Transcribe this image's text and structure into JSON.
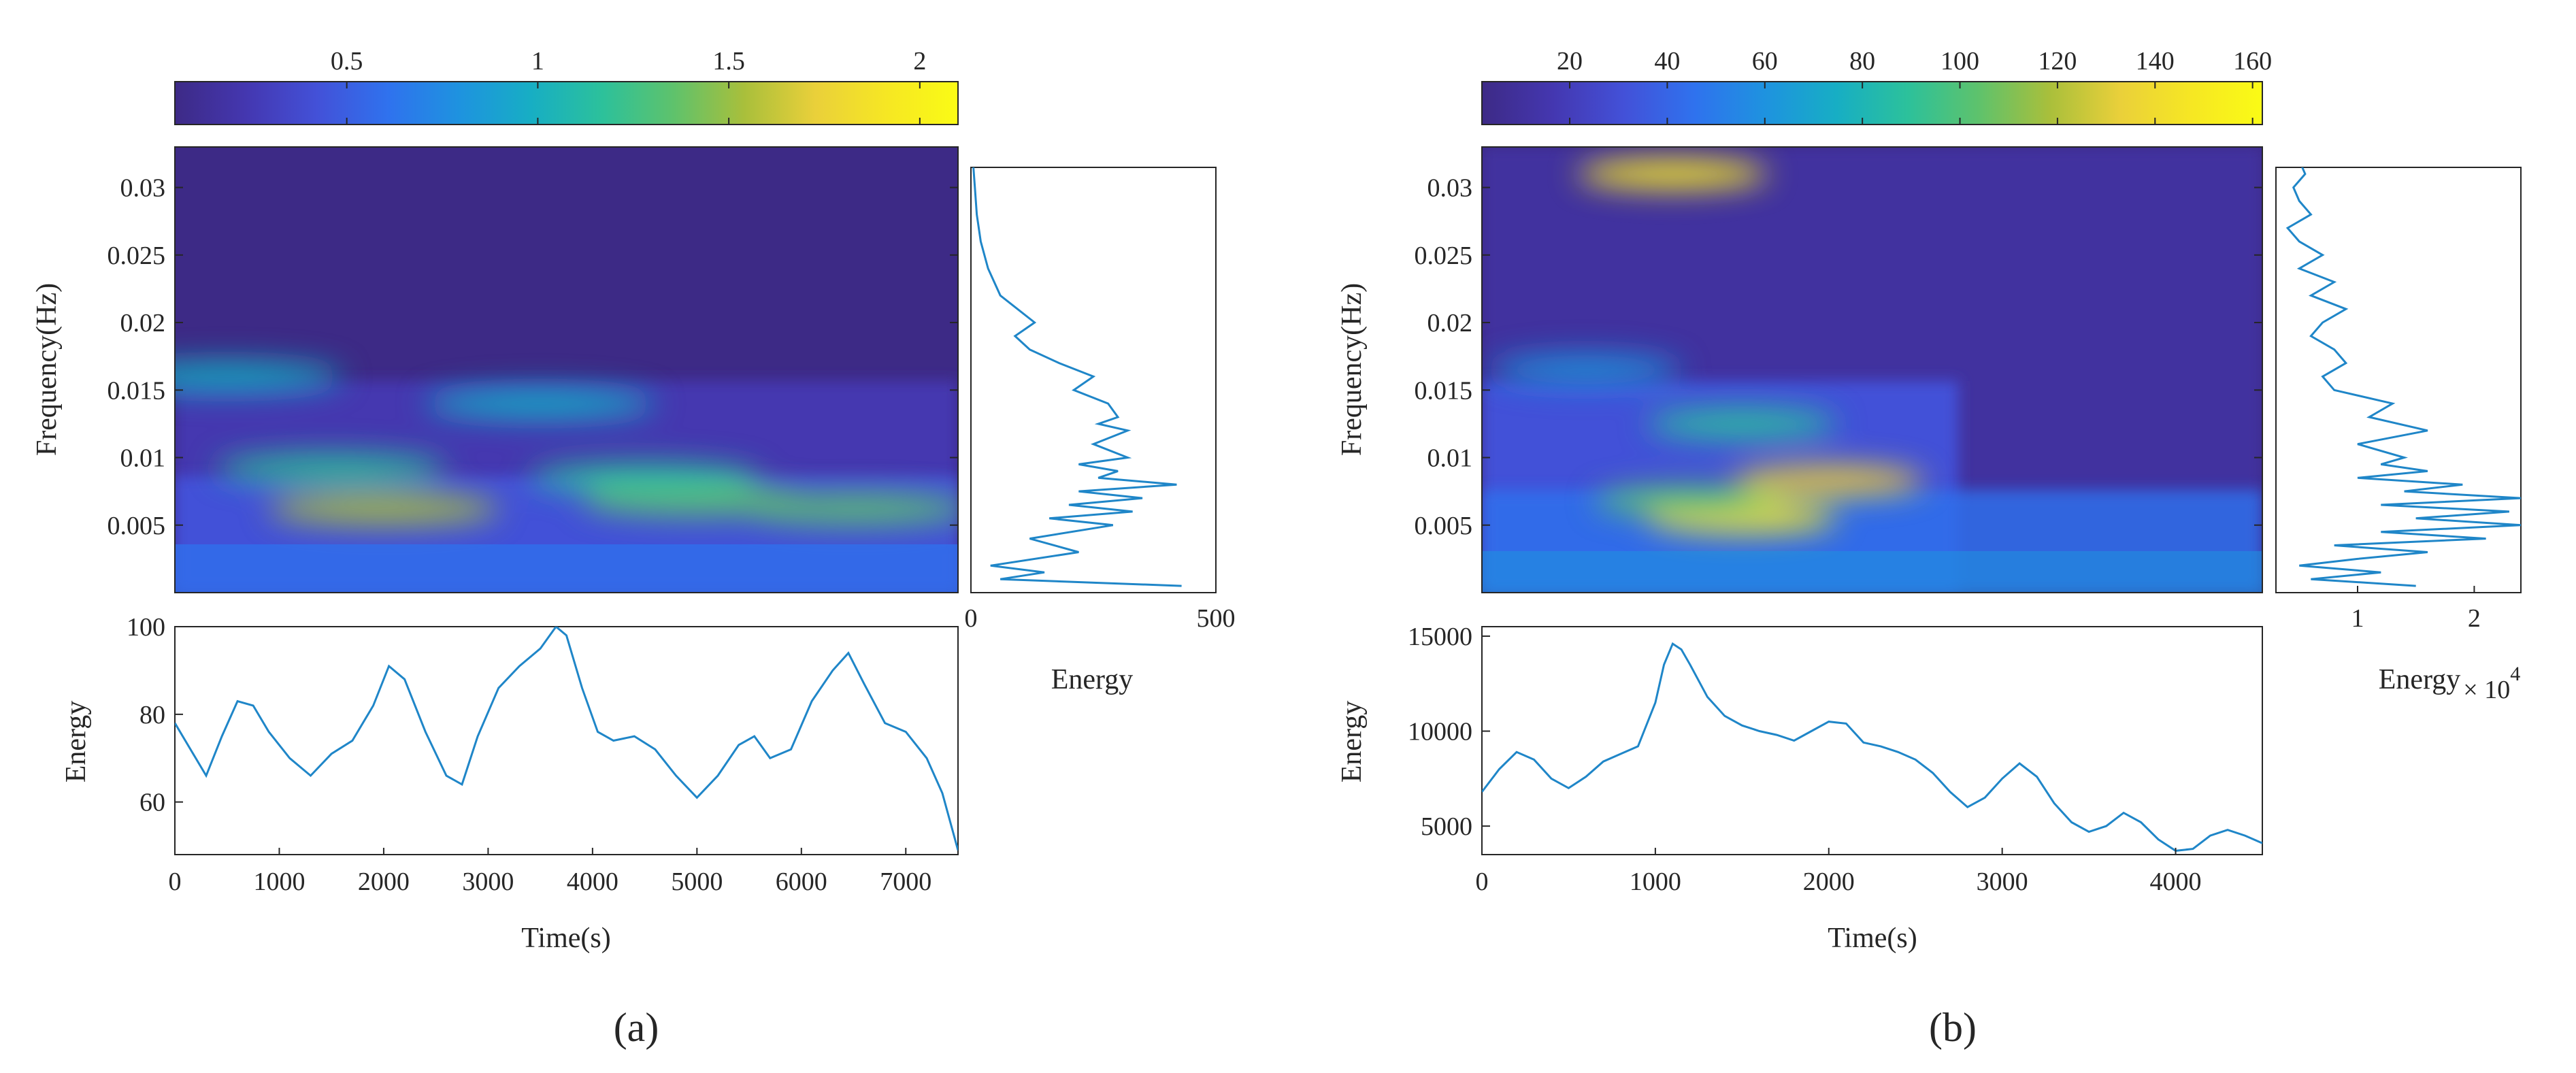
{
  "colors": {
    "line": "#1f86c8",
    "axis": "#262626",
    "colormap": [
      "#3d2a86",
      "#4437b0",
      "#4351d8",
      "#2f72ee",
      "#1e93df",
      "#17aec4",
      "#2cc19b",
      "#5ec26c",
      "#a9bf3b",
      "#ead03a",
      "#f6e723",
      "#fafb15"
    ]
  },
  "chart_data": [
    {
      "panel_label": "(a)",
      "colorbar": {
        "ticks": [
          0.5,
          1,
          1.5,
          2
        ],
        "tick_labels": [
          "0.5",
          "1",
          "1.5",
          "2"
        ],
        "range": [
          0.05,
          2.1
        ]
      },
      "spectrogram": {
        "type": "heatmap",
        "xlim": [
          0,
          7500
        ],
        "ylim": [
          0,
          0.033
        ],
        "ylabel": "Frequency(Hz)",
        "yticks": [
          0.005,
          0.01,
          0.015,
          0.02,
          0.025,
          0.03
        ],
        "ytick_labels": [
          "0.005",
          "0.01",
          "0.015",
          "0.02",
          "0.025",
          "0.03"
        ],
        "features": [
          {
            "t": 2000,
            "f": 0.0062,
            "value": 1.6
          },
          {
            "t": 5000,
            "f": 0.0068,
            "value": 1.3
          },
          {
            "t": 6500,
            "f": 0.0062,
            "value": 1.4
          },
          {
            "t": 1500,
            "f": 0.0092,
            "value": 1.2
          },
          {
            "t": 4500,
            "f": 0.0085,
            "value": 1.1
          },
          {
            "t": 3500,
            "f": 0.014,
            "value": 1.0
          },
          {
            "t": 500,
            "f": 0.016,
            "value": 0.9
          }
        ]
      },
      "marginal_energy": {
        "type": "line",
        "xlabel": "Energy",
        "xlim": [
          0,
          500
        ],
        "xticks": [
          0,
          500
        ],
        "xtick_labels": [
          "0",
          "500"
        ],
        "f": [
          0.0005,
          0.001,
          0.0015,
          0.002,
          0.003,
          0.004,
          0.005,
          0.0055,
          0.006,
          0.0065,
          0.007,
          0.0075,
          0.008,
          0.0085,
          0.009,
          0.0095,
          0.01,
          0.011,
          0.012,
          0.0125,
          0.013,
          0.014,
          0.015,
          0.016,
          0.017,
          0.018,
          0.019,
          0.02,
          0.022,
          0.024,
          0.026,
          0.028,
          0.03,
          0.032
        ],
        "energy": [
          430,
          60,
          150,
          40,
          220,
          120,
          290,
          160,
          330,
          200,
          350,
          220,
          420,
          260,
          300,
          220,
          320,
          250,
          320,
          260,
          300,
          280,
          210,
          250,
          180,
          120,
          90,
          130,
          60,
          35,
          20,
          12,
          8,
          4
        ]
      },
      "time_energy": {
        "type": "line",
        "xlabel": "Time(s)",
        "ylabel": "Energy",
        "xlim": [
          0,
          7500
        ],
        "ylim": [
          48,
          100
        ],
        "xticks": [
          0,
          1000,
          2000,
          3000,
          4000,
          5000,
          6000,
          7000
        ],
        "xtick_labels": [
          "0",
          "1000",
          "2000",
          "3000",
          "4000",
          "5000",
          "6000",
          "7000"
        ],
        "yticks": [
          60,
          80,
          100
        ],
        "ytick_labels": [
          "60",
          "80",
          "100"
        ],
        "x": [
          0,
          150,
          300,
          450,
          600,
          750,
          900,
          1100,
          1300,
          1500,
          1700,
          1900,
          2050,
          2200,
          2400,
          2600,
          2750,
          2900,
          3100,
          3300,
          3500,
          3650,
          3750,
          3900,
          4050,
          4200,
          4400,
          4600,
          4800,
          5000,
          5200,
          5400,
          5550,
          5700,
          5900,
          6100,
          6300,
          6450,
          6600,
          6800,
          7000,
          7200,
          7350,
          7500
        ],
        "y": [
          78,
          72,
          66,
          75,
          83,
          82,
          76,
          70,
          66,
          71,
          74,
          82,
          91,
          88,
          76,
          66,
          64,
          75,
          86,
          91,
          95,
          100,
          98,
          86,
          76,
          74,
          75,
          72,
          66,
          61,
          66,
          73,
          75,
          70,
          72,
          83,
          90,
          94,
          87,
          78,
          76,
          70,
          62,
          49
        ]
      }
    },
    {
      "panel_label": "(b)",
      "colorbar": {
        "ticks": [
          20,
          40,
          60,
          80,
          100,
          120,
          140,
          160
        ],
        "tick_labels": [
          "20",
          "40",
          "60",
          "80",
          "100",
          "120",
          "140",
          "160"
        ],
        "range": [
          2,
          162
        ]
      },
      "spectrogram": {
        "type": "heatmap",
        "xlim": [
          0,
          4500
        ],
        "ylim": [
          0,
          0.033
        ],
        "ylabel": "Frequency(Hz)",
        "yticks": [
          0.005,
          0.01,
          0.015,
          0.02,
          0.025,
          0.03
        ],
        "ytick_labels": [
          "0.005",
          "0.01",
          "0.015",
          "0.02",
          "0.025",
          "0.03"
        ],
        "features": [
          {
            "t": 1100,
            "f": 0.031,
            "value": 150
          },
          {
            "t": 1500,
            "f": 0.0055,
            "value": 150
          },
          {
            "t": 2000,
            "f": 0.0083,
            "value": 140
          },
          {
            "t": 1200,
            "f": 0.0068,
            "value": 110
          },
          {
            "t": 1500,
            "f": 0.0125,
            "value": 90
          },
          {
            "t": 600,
            "f": 0.0165,
            "value": 60
          }
        ]
      },
      "marginal_energy": {
        "type": "line",
        "xlabel": "Energy",
        "xlabel_multiplier": "× 10",
        "xlabel_multiplier_exponent": "4",
        "xlim": [
          0.3,
          2.4
        ],
        "xticks": [
          1,
          2
        ],
        "xtick_labels": [
          "1",
          "2"
        ],
        "f": [
          0.0005,
          0.001,
          0.0015,
          0.002,
          0.0025,
          0.003,
          0.0035,
          0.004,
          0.0045,
          0.005,
          0.0055,
          0.006,
          0.0065,
          0.007,
          0.0075,
          0.008,
          0.0085,
          0.009,
          0.0095,
          0.01,
          0.011,
          0.012,
          0.013,
          0.014,
          0.015,
          0.016,
          0.017,
          0.018,
          0.019,
          0.02,
          0.021,
          0.022,
          0.023,
          0.024,
          0.025,
          0.026,
          0.027,
          0.028,
          0.029,
          0.03,
          0.031,
          0.032
        ],
        "energy": [
          1.5,
          0.6,
          1.2,
          0.5,
          1.0,
          1.6,
          0.8,
          2.1,
          1.2,
          2.4,
          1.5,
          2.3,
          1.2,
          2.4,
          1.4,
          1.9,
          1.0,
          1.6,
          1.2,
          1.4,
          1.0,
          1.6,
          1.1,
          1.3,
          0.8,
          0.7,
          0.9,
          0.8,
          0.6,
          0.7,
          0.9,
          0.6,
          0.8,
          0.5,
          0.7,
          0.5,
          0.4,
          0.6,
          0.5,
          0.45,
          0.55,
          0.5
        ]
      },
      "time_energy": {
        "type": "line",
        "xlabel": "Time(s)",
        "ylabel": "Energy",
        "xlim": [
          0,
          4500
        ],
        "ylim": [
          3500,
          15500
        ],
        "xticks": [
          0,
          1000,
          2000,
          3000,
          4000
        ],
        "xtick_labels": [
          "0",
          "1000",
          "2000",
          "3000",
          "4000"
        ],
        "yticks": [
          5000,
          10000,
          15000
        ],
        "ytick_labels": [
          "5000",
          "10000",
          "15000"
        ],
        "x": [
          0,
          100,
          200,
          300,
          400,
          500,
          600,
          700,
          800,
          900,
          1000,
          1050,
          1100,
          1150,
          1200,
          1300,
          1400,
          1500,
          1600,
          1700,
          1800,
          1900,
          2000,
          2100,
          2200,
          2300,
          2400,
          2500,
          2600,
          2700,
          2800,
          2900,
          3000,
          3100,
          3200,
          3300,
          3400,
          3500,
          3600,
          3700,
          3800,
          3900,
          4000,
          4100,
          4200,
          4300,
          4400,
          4500
        ],
        "y": [
          6800,
          8000,
          8900,
          8500,
          7500,
          7000,
          7600,
          8400,
          8800,
          9200,
          11500,
          13500,
          14600,
          14300,
          13500,
          11800,
          10800,
          10300,
          10000,
          9800,
          9500,
          10000,
          10500,
          10400,
          9400,
          9200,
          8900,
          8500,
          7800,
          6800,
          6000,
          6500,
          7500,
          8300,
          7600,
          6200,
          5200,
          4700,
          5000,
          5700,
          5200,
          4300,
          3700,
          3800,
          4500,
          4800,
          4500,
          4100
        ]
      }
    }
  ]
}
